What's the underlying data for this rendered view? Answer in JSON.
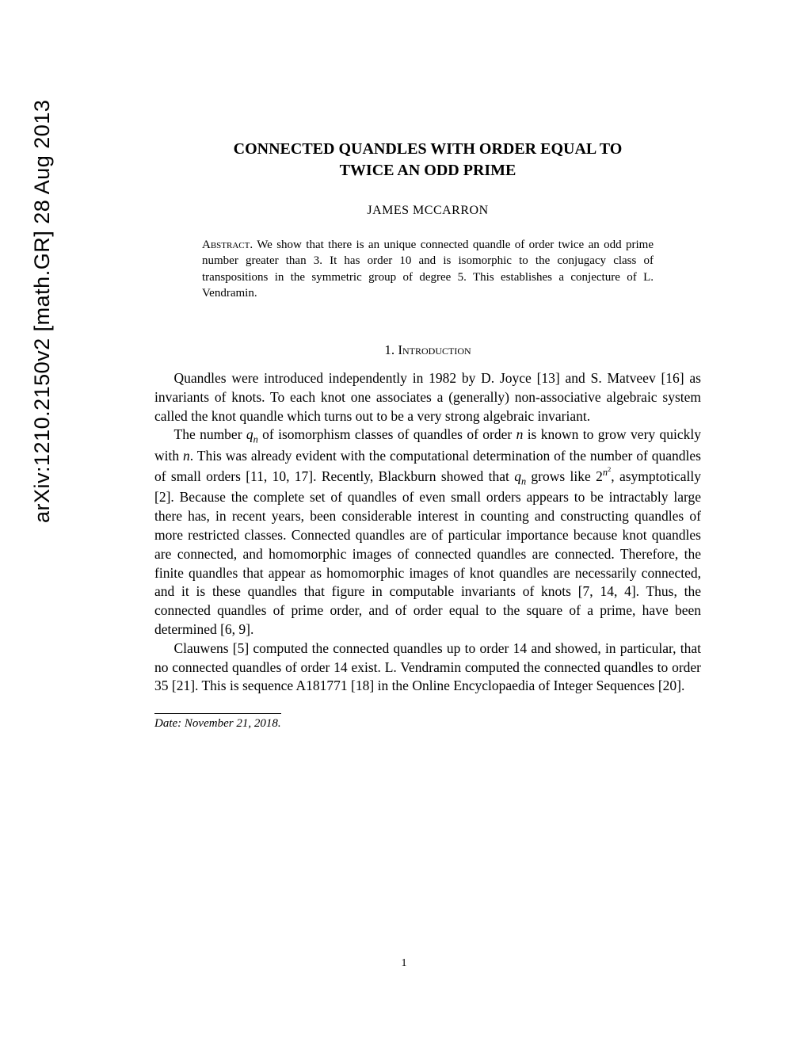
{
  "arxiv_stamp": "arXiv:1210.2150v2  [math.GR]  28 Aug 2013",
  "title_line1": "CONNECTED QUANDLES WITH ORDER EQUAL TO",
  "title_line2": "TWICE AN ODD PRIME",
  "author": "JAMES MCCARRON",
  "abstract_label": "Abstract.",
  "abstract_text": " We show that there is an unique connected quandle of order twice an odd prime number greater than 3. It has order 10 and is isomorphic to the conjugacy class of transpositions in the symmetric group of degree 5. This establishes a conjecture of L. Vendramin.",
  "section_number": "1.",
  "section_title": "Introduction",
  "para1": "Quandles were introduced independently in 1982 by D. Joyce [13] and S. Matveev [16] as invariants of knots. To each knot one associates a (generally) non-associative algebraic system called the knot quandle which turns out to be a very strong algebraic invariant.",
  "para2_a": "The number ",
  "para2_b": " of isomorphism classes of quandles of order ",
  "para2_c": " is known to grow very quickly with ",
  "para2_d": ". This was already evident with the computational determination of the number of quandles of small orders [11, 10, 17]. Recently, Blackburn showed that ",
  "para2_e": " grows like ",
  "para2_f": ", asymptotically [2]. Because the complete set of quandles of even small orders appears to be intractably large there has, in recent years, been considerable interest in counting and constructing quandles of more restricted classes. Connected quandles are of particular importance because knot quandles are connected, and homomorphic images of connected quandles are connected. Therefore, the finite quandles that appear as homomorphic images of knot quandles are necessarily connected, and it is these quandles that figure in computable invariants of knots [7, 14, 4]. Thus, the connected quandles of prime order, and of order equal to the square of a prime, have been determined [6, 9].",
  "para3": "Clauwens [5] computed the connected quandles up to order 14 and showed, in particular, that no connected quandles of order 14 exist. L. Vendramin computed the connected quandles to order 35 [21]. This is sequence A181771 [18] in the Online Encyclopaedia of Integer Sequences [20].",
  "date_label": "Date",
  "date_value": ": November 21, 2018.",
  "page_number": "1",
  "math": {
    "qn": "q",
    "n": "n",
    "two": "2"
  },
  "colors": {
    "text": "#000000",
    "background": "#ffffff"
  },
  "typography": {
    "title_fontsize": 20,
    "author_fontsize": 16,
    "abstract_fontsize": 15,
    "body_fontsize": 17.5,
    "footnote_fontsize": 15
  }
}
